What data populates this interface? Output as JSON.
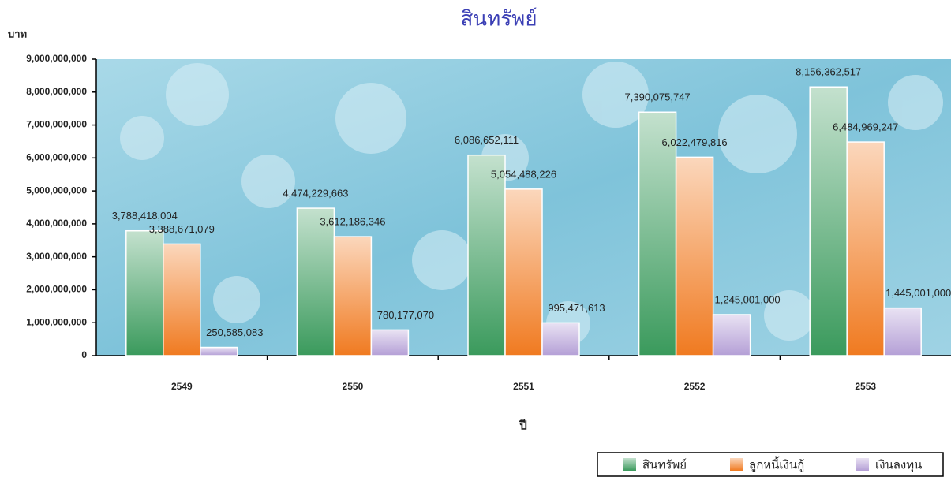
{
  "chart_data": {
    "type": "bar",
    "title": "สินทรัพย์",
    "y_label": "บาท",
    "x_label": "ปี",
    "categories": [
      "2549",
      "2550",
      "2551",
      "2552",
      "2553"
    ],
    "series": [
      {
        "name": "สินทรัพย์",
        "color": "#3a9a5c",
        "values": [
          3788418004,
          4474229663,
          6086652111,
          7390075747,
          8156362517
        ],
        "value_labels": [
          "3,788,418,004",
          "4,474,229,663",
          "6,086,652,111",
          "7,390,075,747",
          "8,156,362,517"
        ]
      },
      {
        "name": "ลูกหนี้เงินกู้",
        "color": "#f07a20",
        "values": [
          3388671079,
          3612186346,
          5054488226,
          6022479816,
          6484969247
        ],
        "value_labels": [
          "3,388,671,079",
          "3,612,186,346",
          "5,054,488,226",
          "6,022,479,816",
          "6,484,969,247"
        ]
      },
      {
        "name": "เงินลงทุน",
        "color": "#b49fd6",
        "values": [
          250585083,
          780177070,
          995471613,
          1245001000,
          1445001000
        ],
        "value_labels": [
          "250,585,083",
          "780,177,070",
          "995,471,613",
          "1,245,001,000",
          "1,445,001,000"
        ]
      }
    ],
    "ylim": [
      0,
      9000000000
    ],
    "yticks": [
      {
        "value": 0,
        "label": "0"
      },
      {
        "value": 1000000000,
        "label": "1,000,000,000"
      },
      {
        "value": 2000000000,
        "label": "2,000,000,000"
      },
      {
        "value": 3000000000,
        "label": "3,000,000,000"
      },
      {
        "value": 4000000000,
        "label": "4,000,000,000"
      },
      {
        "value": 5000000000,
        "label": "5,000,000,000"
      },
      {
        "value": 6000000000,
        "label": "6,000,000,000"
      },
      {
        "value": 7000000000,
        "label": "7,000,000,000"
      },
      {
        "value": 8000000000,
        "label": "8,000,000,000"
      },
      {
        "value": 9000000000,
        "label": "9,000,000,000"
      }
    ],
    "legend": "bottom-right"
  }
}
